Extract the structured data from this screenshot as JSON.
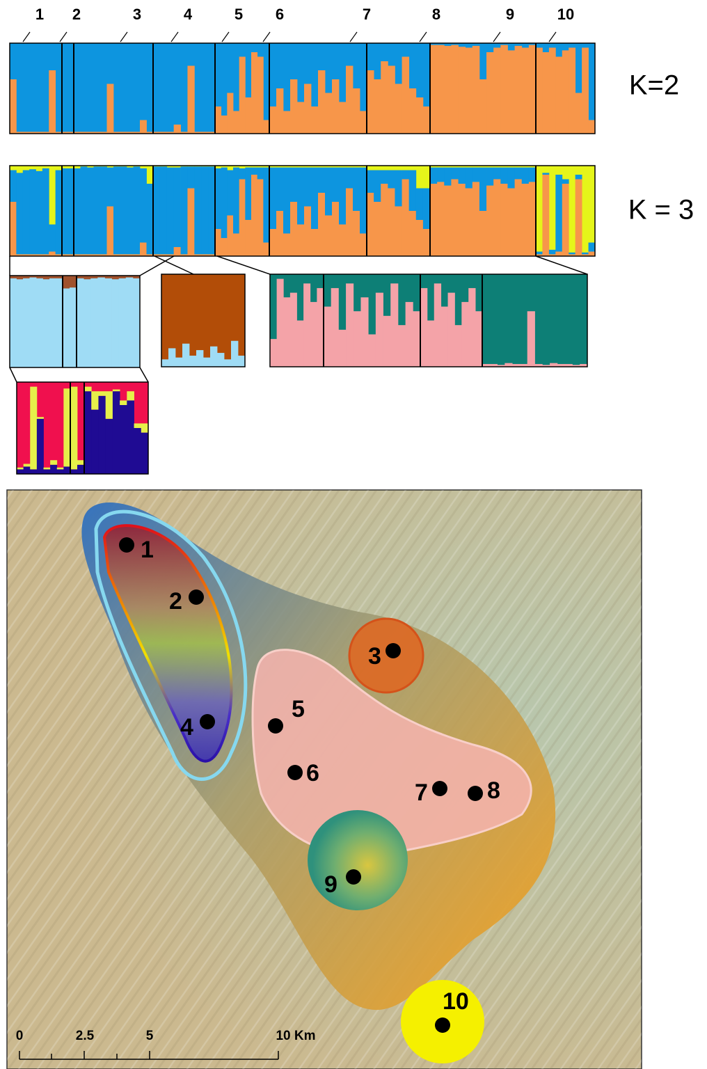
{
  "population_labels": [
    "1",
    "2",
    "3",
    "4",
    "5",
    "6",
    "7",
    "8",
    "9",
    "10"
  ],
  "panels": [
    {
      "label": "K=2",
      "background": "#0d95df",
      "colors": [
        "#f7964a"
      ],
      "groups": [
        [
          0.6,
          0.02,
          0.02,
          0.02,
          0.02,
          0.02,
          0.7,
          0.02
        ],
        [
          0.02,
          0.02
        ],
        [
          0.02,
          0.02,
          0.02,
          0.02,
          0.02,
          0.55,
          0.02,
          0.02,
          0.02,
          0.02,
          0.15,
          0.02
        ],
        [
          0.02,
          0.02,
          0.02,
          0.1,
          0.02,
          0.75,
          0.02,
          0.02,
          0.02
        ],
        [
          0.3,
          0.2,
          0.45,
          0.25,
          0.85,
          0.4,
          0.9,
          0.85,
          0.15
        ],
        [
          0.3,
          0.5,
          0.25,
          0.6,
          0.35,
          0.55,
          0.3,
          0.7,
          0.45,
          0.6,
          0.35,
          0.75,
          0.5,
          0.25
        ],
        [
          0.7,
          0.6,
          0.8,
          0.75,
          0.55,
          0.85,
          0.5,
          0.4,
          0.3
        ],
        [
          0.98,
          0.98,
          0.97,
          0.98,
          0.96,
          0.95,
          0.97,
          0.6,
          0.9,
          0.95,
          0.98,
          0.92,
          0.97,
          0.95,
          0.98
        ],
        [
          0.95,
          0.9,
          0.95,
          0.85,
          0.92,
          0.95,
          0.45,
          0.95,
          0.15
        ]
      ]
    },
    {
      "label": "K = 3",
      "background": "#e5f51a",
      "colors": [
        "#f7964a",
        "#0d95df"
      ],
      "groups": [
        [
          [
            0.6,
            0.35
          ],
          [
            0.02,
            0.9
          ],
          [
            0.02,
            0.93
          ],
          [
            0.02,
            0.94
          ],
          [
            0.02,
            0.92
          ],
          [
            0.02,
            0.95
          ],
          [
            0.05,
            0.3
          ],
          [
            0.02,
            0.93
          ]
        ],
        [
          [
            0.02,
            0.95
          ],
          [
            0.02,
            0.95
          ]
        ],
        [
          [
            0.02,
            0.95
          ],
          [
            0.02,
            0.97
          ],
          [
            0.02,
            0.96
          ],
          [
            0.02,
            0.97
          ],
          [
            0.02,
            0.97
          ],
          [
            0.55,
            0.43
          ],
          [
            0.02,
            0.97
          ],
          [
            0.02,
            0.97
          ],
          [
            0.02,
            0.96
          ],
          [
            0.02,
            0.97
          ],
          [
            0.15,
            0.82
          ],
          [
            0.02,
            0.78
          ]
        ],
        [
          [
            0.02,
            0.97
          ],
          [
            0.02,
            0.97
          ],
          [
            0.02,
            0.96
          ],
          [
            0.1,
            0.88
          ],
          [
            0.02,
            0.97
          ],
          [
            0.75,
            0.24
          ],
          [
            0.02,
            0.97
          ],
          [
            0.02,
            0.97
          ],
          [
            0.02,
            0.97
          ]
        ],
        [
          [
            0.3,
            0.67
          ],
          [
            0.2,
            0.78
          ],
          [
            0.45,
            0.5
          ],
          [
            0.25,
            0.73
          ],
          [
            0.85,
            0.12
          ],
          [
            0.4,
            0.58
          ],
          [
            0.9,
            0.08
          ],
          [
            0.85,
            0.13
          ],
          [
            0.15,
            0.83
          ]
        ],
        [
          [
            0.3,
            0.68
          ],
          [
            0.5,
            0.48
          ],
          [
            0.25,
            0.73
          ],
          [
            0.6,
            0.38
          ],
          [
            0.35,
            0.63
          ],
          [
            0.55,
            0.43
          ],
          [
            0.3,
            0.68
          ],
          [
            0.7,
            0.28
          ],
          [
            0.45,
            0.53
          ],
          [
            0.6,
            0.38
          ],
          [
            0.35,
            0.63
          ],
          [
            0.75,
            0.23
          ],
          [
            0.5,
            0.48
          ],
          [
            0.25,
            0.73
          ]
        ],
        [
          [
            0.7,
            0.25
          ],
          [
            0.6,
            0.35
          ],
          [
            0.8,
            0.15
          ],
          [
            0.75,
            0.2
          ],
          [
            0.55,
            0.4
          ],
          [
            0.85,
            0.1
          ],
          [
            0.5,
            0.45
          ],
          [
            0.4,
            0.35
          ],
          [
            0.3,
            0.45
          ]
        ],
        [
          [
            0.8,
            0.18
          ],
          [
            0.82,
            0.16
          ],
          [
            0.78,
            0.2
          ],
          [
            0.85,
            0.13
          ],
          [
            0.8,
            0.18
          ],
          [
            0.75,
            0.23
          ],
          [
            0.82,
            0.16
          ],
          [
            0.5,
            0.48
          ],
          [
            0.78,
            0.2
          ],
          [
            0.85,
            0.13
          ],
          [
            0.8,
            0.18
          ],
          [
            0.75,
            0.23
          ],
          [
            0.85,
            0.13
          ],
          [
            0.8,
            0.18
          ],
          [
            0.82,
            0.16
          ]
        ],
        [
          [
            0.02,
            0.03
          ],
          [
            0.9,
            0.02
          ],
          [
            0.02,
            0.05
          ],
          [
            0.05,
            0.85
          ],
          [
            0.8,
            0.05
          ],
          [
            0.02,
            0.02
          ],
          [
            0.85,
            0.05
          ],
          [
            0.02,
            0.02
          ],
          [
            0.05,
            0.1
          ]
        ]
      ]
    },
    {
      "background": "#a0522d",
      "colors": [
        "#9fdcf5"
      ],
      "groups": [
        [
          0.97,
          0.96,
          0.97,
          0.98,
          0.97,
          0.96,
          0.97,
          0.97
        ],
        [
          0.86,
          0.87
        ],
        [
          0.97,
          0.96,
          0.97,
          0.98,
          0.97,
          0.96,
          0.97,
          0.98,
          0.97
        ]
      ]
    },
    {
      "background": "#b24d08",
      "colors": [
        "#9fdcf5"
      ],
      "groups": [
        [
          0.08,
          0.2,
          0.1,
          0.25,
          0.12,
          0.18,
          0.1,
          0.22,
          0.15,
          0.08,
          0.28,
          0.12
        ]
      ]
    },
    {
      "background": "#0d7f76",
      "colors": [
        "#f4a3a8"
      ],
      "groups": [
        [
          0.3,
          0.95,
          0.75,
          0.8,
          0.5,
          0.9,
          0.7,
          0.85
        ],
        [
          0.65,
          0.85,
          0.4,
          0.9,
          0.6,
          0.75,
          0.35,
          0.8,
          0.55,
          0.9,
          0.45,
          0.7,
          0.6
        ],
        [
          0.85,
          0.5,
          0.9,
          0.65,
          0.8,
          0.45,
          0.7,
          0.85,
          0.6
        ],
        [
          0.03,
          0.03,
          0.02,
          0.04,
          0.03,
          0.03,
          0.6,
          0.03,
          0.02,
          0.04,
          0.03,
          0.03,
          0.02,
          0.03
        ]
      ]
    },
    {
      "background": "#f0104e",
      "colors": [
        "#1f0b93",
        "#e6f04a"
      ],
      "groups": [
        [
          [
            0.05,
            0.02
          ],
          [
            0.08,
            0.03
          ],
          [
            0.05,
            0.9
          ],
          [
            0.6,
            0.02
          ],
          [
            0.05,
            0.02
          ],
          [
            0.1,
            0.05
          ],
          [
            0.05,
            0.02
          ],
          [
            0.08,
            0.85
          ]
        ],
        [
          [
            0.05,
            0.9
          ],
          [
            0.1,
            0.05
          ]
        ],
        [
          [
            0.9,
            0.05
          ],
          [
            0.7,
            0.2
          ],
          [
            0.85,
            0.05
          ],
          [
            0.6,
            0.3
          ],
          [
            0.9,
            0.02
          ],
          [
            0.75,
            0.05
          ],
          [
            0.8,
            0.1
          ],
          [
            0.5,
            0.05
          ],
          [
            0.45,
            0.1
          ]
        ]
      ]
    }
  ],
  "map": {
    "sites": [
      "1",
      "2",
      "3",
      "4",
      "5",
      "6",
      "7",
      "8",
      "9",
      "10"
    ],
    "scale": [
      "0",
      "2.5",
      "5",
      "10 Km"
    ]
  }
}
